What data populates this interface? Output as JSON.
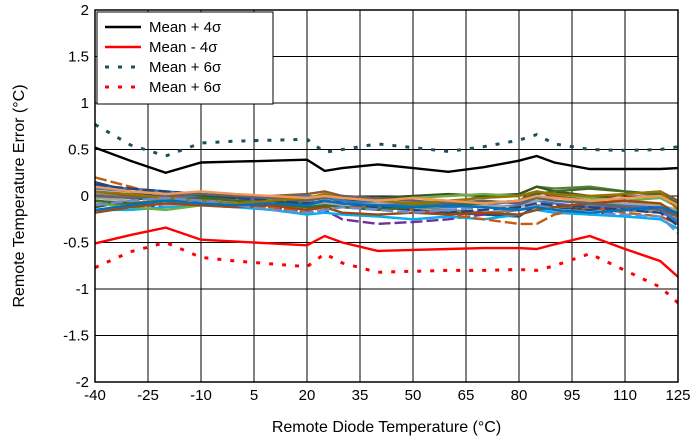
{
  "chart_data": {
    "type": "line",
    "xlabel": "Remote Diode Temperature (°C)",
    "ylabel": "Remote Temperature Error (°C)",
    "xlim": [
      -40,
      125
    ],
    "ylim": [
      -2,
      2
    ],
    "xticks": [
      -40,
      -25,
      -10,
      5,
      20,
      35,
      50,
      65,
      80,
      95,
      110,
      125
    ],
    "yticks": [
      -2,
      -1.5,
      -1,
      -0.5,
      0,
      0.5,
      1,
      1.5,
      2
    ],
    "ytick_labels": [
      "-2",
      "-1.5",
      "-1",
      "-0.5",
      "0",
      "0.5",
      "1",
      "1.5",
      "2"
    ],
    "grid": true,
    "legend_position": "top-left",
    "series": [
      {
        "name": "Mean + 4σ",
        "color": "#000000",
        "dash": "solid",
        "x": [
          -40,
          -30,
          -20,
          -10,
          0,
          10,
          20,
          25,
          30,
          40,
          50,
          60,
          70,
          80,
          85,
          90,
          100,
          110,
          120,
          125
        ],
        "y": [
          0.52,
          0.38,
          0.25,
          0.36,
          0.37,
          0.38,
          0.39,
          0.27,
          0.3,
          0.34,
          0.3,
          0.26,
          0.31,
          0.38,
          0.43,
          0.36,
          0.29,
          0.29,
          0.29,
          0.3
        ]
      },
      {
        "name": "Mean - 4σ",
        "color": "#ff0000",
        "dash": "solid",
        "x": [
          -40,
          -30,
          -20,
          -10,
          0,
          10,
          20,
          25,
          30,
          40,
          50,
          60,
          70,
          80,
          85,
          90,
          100,
          110,
          120,
          125
        ],
        "y": [
          -0.51,
          -0.42,
          -0.34,
          -0.47,
          -0.49,
          -0.51,
          -0.53,
          -0.43,
          -0.5,
          -0.59,
          -0.58,
          -0.57,
          -0.56,
          -0.56,
          -0.57,
          -0.52,
          -0.43,
          -0.57,
          -0.7,
          -0.87
        ]
      },
      {
        "name": "Mean + 6σ",
        "color": "#1f4e5f",
        "dash": "dotted",
        "x": [
          -40,
          -30,
          -20,
          -10,
          0,
          10,
          20,
          25,
          30,
          40,
          50,
          60,
          70,
          80,
          85,
          90,
          100,
          110,
          120,
          125
        ],
        "y": [
          0.77,
          0.55,
          0.43,
          0.57,
          0.59,
          0.6,
          0.61,
          0.47,
          0.5,
          0.56,
          0.52,
          0.48,
          0.53,
          0.6,
          0.66,
          0.56,
          0.5,
          0.49,
          0.5,
          0.53
        ]
      },
      {
        "name": "Mean + 6σ",
        "color": "#ff0000",
        "dash": "dotted",
        "x": [
          -40,
          -30,
          -20,
          -10,
          0,
          10,
          20,
          25,
          30,
          40,
          50,
          60,
          70,
          80,
          85,
          90,
          100,
          110,
          120,
          125
        ],
        "y": [
          -0.77,
          -0.6,
          -0.5,
          -0.66,
          -0.7,
          -0.73,
          -0.76,
          -0.62,
          -0.72,
          -0.82,
          -0.81,
          -0.8,
          -0.8,
          -0.79,
          -0.8,
          -0.75,
          -0.62,
          -0.8,
          -0.98,
          -1.15
        ]
      }
    ],
    "unit_lines": {
      "x": [
        -40,
        -30,
        -20,
        -10,
        0,
        10,
        20,
        25,
        30,
        40,
        50,
        60,
        70,
        80,
        85,
        90,
        100,
        110,
        120,
        125
      ],
      "palette": [
        "#1f4e79",
        "#2e75b6",
        "#7030a0",
        "#8b5a2b",
        "#548235",
        "#00b0f0",
        "#808080",
        "#c55a11",
        "#375623",
        "#4472c4",
        "#a5a5a5",
        "#70ad47",
        "#264478",
        "#9e480e",
        "#636363",
        "#43682b",
        "#997300",
        "#698ed0",
        "#f1975a",
        "#0070c0"
      ],
      "values": [
        [
          0.15,
          0.05,
          -0.02,
          0.0,
          -0.05,
          -0.1,
          -0.15,
          -0.05,
          -0.08,
          -0.12,
          -0.15,
          -0.18,
          -0.2,
          -0.22,
          -0.1,
          -0.12,
          -0.15,
          -0.12,
          -0.15,
          -0.3
        ],
        [
          0.1,
          0.08,
          0.05,
          0.02,
          0.0,
          -0.02,
          -0.05,
          0.02,
          -0.03,
          -0.08,
          -0.1,
          -0.12,
          -0.1,
          -0.05,
          0.05,
          0.0,
          -0.08,
          -0.1,
          -0.12,
          -0.2
        ],
        [
          -0.1,
          -0.08,
          -0.12,
          -0.05,
          -0.08,
          -0.12,
          -0.18,
          -0.15,
          -0.25,
          -0.3,
          -0.28,
          -0.25,
          -0.2,
          -0.15,
          -0.12,
          -0.15,
          -0.2,
          -0.15,
          -0.1,
          -0.25
        ],
        [
          0.05,
          0.0,
          -0.05,
          -0.03,
          -0.02,
          0.0,
          0.02,
          0.05,
          0.0,
          -0.05,
          -0.08,
          -0.1,
          -0.08,
          -0.05,
          0.05,
          0.0,
          -0.05,
          0.02,
          0.05,
          -0.05
        ],
        [
          -0.05,
          -0.1,
          -0.08,
          -0.02,
          0.0,
          -0.02,
          -0.08,
          -0.05,
          -0.1,
          -0.12,
          -0.1,
          -0.08,
          0.0,
          0.02,
          0.1,
          0.08,
          0.1,
          0.05,
          0.0,
          -0.1
        ],
        [
          -0.15,
          -0.15,
          -0.12,
          -0.1,
          -0.12,
          -0.15,
          -0.2,
          -0.18,
          -0.2,
          -0.22,
          -0.25,
          -0.22,
          -0.25,
          -0.2,
          -0.15,
          -0.18,
          -0.2,
          -0.22,
          -0.25,
          -0.35
        ],
        [
          0.02,
          -0.02,
          -0.05,
          0.0,
          -0.05,
          -0.08,
          -0.1,
          -0.12,
          -0.1,
          -0.15,
          -0.12,
          -0.15,
          -0.18,
          -0.15,
          -0.1,
          -0.12,
          -0.1,
          -0.15,
          -0.18,
          -0.25
        ],
        [
          0.2,
          0.1,
          0.0,
          -0.05,
          -0.1,
          -0.12,
          -0.18,
          -0.1,
          -0.12,
          -0.1,
          -0.15,
          -0.2,
          -0.25,
          -0.3,
          -0.3,
          -0.2,
          -0.12,
          -0.18,
          -0.22,
          -0.3
        ],
        [
          -0.12,
          -0.05,
          0.02,
          0.0,
          -0.02,
          -0.05,
          -0.1,
          -0.08,
          -0.05,
          -0.02,
          0.0,
          0.02,
          0.0,
          0.02,
          0.1,
          0.05,
          0.0,
          -0.05,
          -0.1,
          -0.2
        ],
        [
          0.08,
          0.05,
          0.02,
          -0.02,
          -0.05,
          -0.02,
          0.0,
          -0.02,
          -0.05,
          -0.1,
          -0.12,
          -0.1,
          -0.12,
          -0.1,
          -0.05,
          -0.08,
          -0.12,
          -0.1,
          -0.15,
          -0.28
        ],
        [
          -0.02,
          -0.05,
          -0.1,
          -0.08,
          -0.05,
          -0.1,
          -0.12,
          -0.08,
          -0.1,
          -0.08,
          -0.05,
          -0.08,
          -0.1,
          -0.12,
          -0.05,
          -0.02,
          -0.05,
          -0.08,
          -0.1,
          -0.15
        ],
        [
          -0.08,
          -0.12,
          -0.15,
          -0.1,
          -0.08,
          -0.05,
          -0.02,
          0.0,
          -0.02,
          -0.05,
          -0.02,
          0.0,
          0.02,
          0.0,
          0.05,
          0.02,
          -0.02,
          -0.05,
          -0.02,
          -0.12
        ],
        [
          0.12,
          0.08,
          0.05,
          0.02,
          -0.02,
          -0.05,
          -0.08,
          -0.05,
          -0.08,
          -0.12,
          -0.15,
          -0.18,
          -0.15,
          -0.12,
          -0.08,
          -0.1,
          -0.12,
          -0.15,
          -0.18,
          -0.32
        ],
        [
          -0.18,
          -0.12,
          -0.08,
          -0.1,
          -0.12,
          -0.1,
          -0.15,
          -0.12,
          -0.18,
          -0.2,
          -0.18,
          -0.2,
          -0.18,
          -0.2,
          -0.15,
          -0.12,
          -0.08,
          -0.05,
          -0.08,
          -0.2
        ],
        [
          0.0,
          -0.02,
          0.0,
          0.02,
          0.0,
          -0.02,
          -0.05,
          -0.02,
          0.0,
          -0.02,
          -0.05,
          -0.08,
          -0.05,
          -0.08,
          -0.02,
          -0.05,
          -0.08,
          -0.12,
          -0.15,
          -0.22
        ],
        [
          -0.05,
          -0.08,
          -0.05,
          -0.02,
          -0.05,
          -0.08,
          -0.12,
          -0.1,
          -0.12,
          -0.15,
          -0.12,
          -0.1,
          -0.08,
          -0.05,
          0.02,
          0.05,
          0.08,
          0.05,
          0.02,
          -0.08
        ],
        [
          0.05,
          0.02,
          -0.02,
          -0.05,
          -0.08,
          -0.05,
          -0.02,
          0.02,
          -0.02,
          -0.05,
          -0.08,
          -0.05,
          -0.02,
          0.0,
          0.05,
          0.02,
          0.0,
          0.02,
          0.05,
          -0.15
        ],
        [
          -0.1,
          -0.05,
          -0.02,
          -0.05,
          -0.1,
          -0.15,
          -0.18,
          -0.15,
          -0.12,
          -0.15,
          -0.18,
          -0.15,
          -0.12,
          -0.15,
          -0.1,
          -0.15,
          -0.18,
          -0.2,
          -0.22,
          -0.4
        ],
        [
          0.1,
          0.05,
          0.02,
          0.05,
          0.02,
          0.0,
          -0.02,
          0.0,
          -0.02,
          -0.05,
          -0.02,
          -0.05,
          -0.08,
          -0.05,
          0.0,
          -0.02,
          -0.05,
          -0.02,
          0.0,
          -0.1
        ],
        [
          -0.15,
          -0.1,
          -0.05,
          -0.08,
          -0.1,
          -0.08,
          -0.1,
          -0.05,
          -0.08,
          -0.1,
          -0.12,
          -0.1,
          -0.12,
          -0.15,
          -0.12,
          -0.15,
          -0.18,
          -0.15,
          -0.12,
          -0.18
        ]
      ]
    }
  }
}
